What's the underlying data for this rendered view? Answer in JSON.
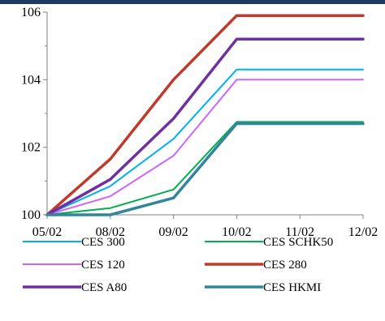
{
  "colors": {
    "header_bar": "#1f3864",
    "axis": "#808080"
  },
  "chart_data": {
    "type": "line",
    "title": "",
    "xlabel": "",
    "ylabel": "",
    "categories": [
      "05/02",
      "08/02",
      "09/02",
      "10/02",
      "11/02",
      "12/02"
    ],
    "y_ticks": [
      "100",
      "102",
      "104",
      "106"
    ],
    "ylim": [
      100,
      106
    ],
    "grid": false,
    "legend_position": "bottom",
    "series": [
      {
        "name": "CES 300",
        "color": "#00b0f0",
        "width": 2,
        "values": [
          100.0,
          100.85,
          102.25,
          104.3,
          104.3,
          104.3
        ]
      },
      {
        "name": "CES SCHK50",
        "color": "#00b050",
        "width": 2,
        "values": [
          100.0,
          100.2,
          100.75,
          102.75,
          102.75,
          102.75
        ]
      },
      {
        "name": "CES 120",
        "color": "#cc66ff",
        "width": 2,
        "values": [
          100.0,
          100.55,
          101.75,
          104.0,
          104.0,
          104.0
        ]
      },
      {
        "name": "CES 280",
        "color": "#c0392b",
        "width": 3.5,
        "values": [
          100.0,
          101.65,
          104.0,
          105.9,
          105.9,
          105.9
        ]
      },
      {
        "name": "CES A80",
        "color": "#7030a0",
        "width": 3.5,
        "values": [
          100.0,
          101.05,
          102.85,
          105.2,
          105.2,
          105.2
        ]
      },
      {
        "name": "CES HKMI",
        "color": "#31859c",
        "width": 3.5,
        "values": [
          100.0,
          100.0,
          100.5,
          102.7,
          102.7,
          102.7
        ]
      }
    ]
  }
}
